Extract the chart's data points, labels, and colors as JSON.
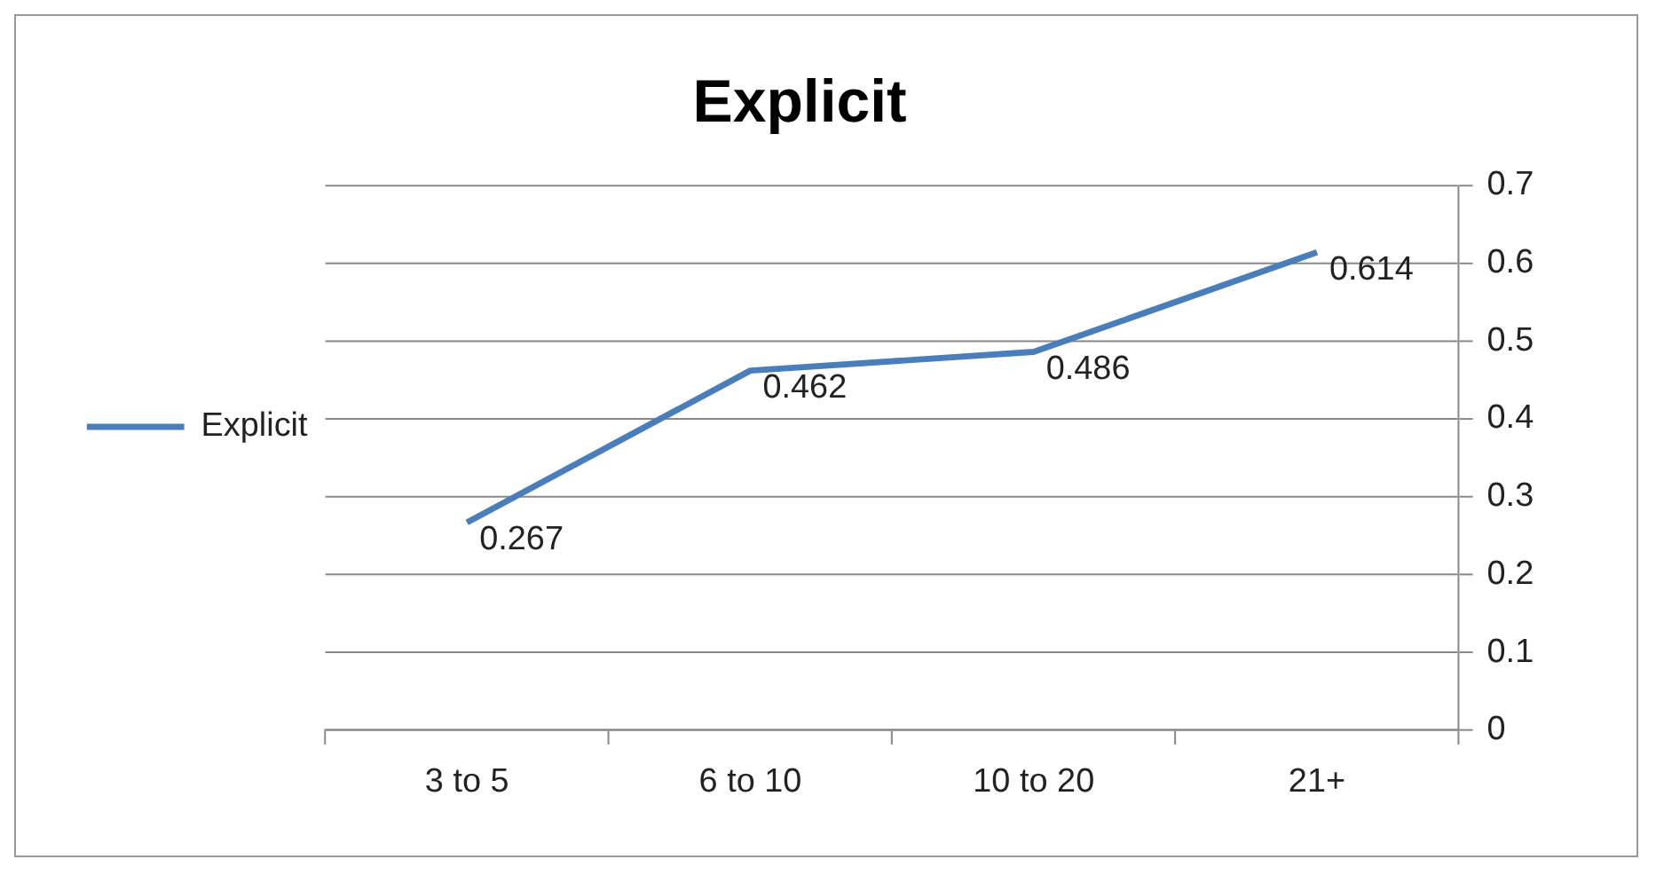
{
  "chart_data": {
    "type": "line",
    "title": "Explicit",
    "categories": [
      "3 to 5",
      "6 to 10",
      "10 to 20",
      "21+"
    ],
    "series": [
      {
        "name": "Explicit",
        "color": "#4a7ebb",
        "values": [
          0.267,
          0.462,
          0.486,
          0.614
        ]
      }
    ],
    "ylim": [
      0,
      0.7
    ],
    "yticks": [
      0,
      0.1,
      0.2,
      0.3,
      0.4,
      0.5,
      0.6,
      0.7
    ],
    "grid": "y",
    "legend": "left",
    "data_labels": true,
    "marker": "none",
    "line_style": "solid"
  }
}
